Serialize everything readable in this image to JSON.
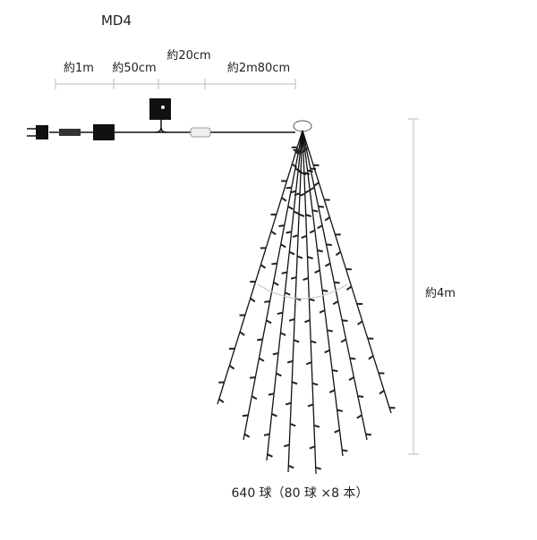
{
  "header": {
    "model": "MD4"
  },
  "dimensions": {
    "cord_1": "約1m",
    "cord_2": "約50cm",
    "adapter": "約20cm",
    "cord_3": "約2m80cm",
    "height": "約4m"
  },
  "caption": "640 球（80 球 ×8 本）"
}
